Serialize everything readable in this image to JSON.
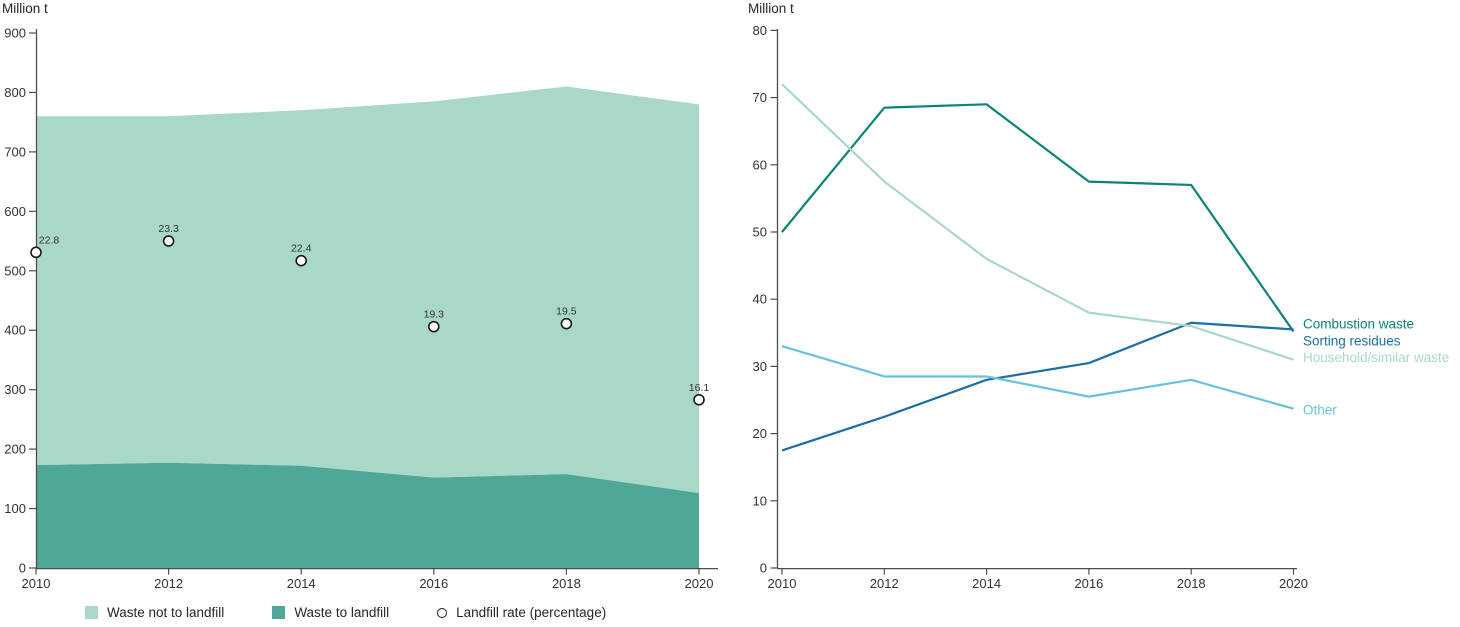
{
  "page": {
    "background_color": "#ffffff"
  },
  "colors": {
    "axis": "#4d4d4d",
    "tick_text": "#333333",
    "text": "#262626",
    "marker_stroke": "#1a1a1a",
    "marker_fill": "#ffffff"
  },
  "chart_data": [
    {
      "type": "area",
      "subtype": "stacked-area-with-rate-markers",
      "ylabel": "Million t",
      "ylim": [
        0,
        900
      ],
      "ytick_step": 100,
      "grid": false,
      "stacked": true,
      "legend_position": "bottom",
      "categories": [
        2010,
        2012,
        2014,
        2016,
        2018,
        2020
      ],
      "totals": [
        760,
        760,
        770,
        785,
        810,
        780
      ],
      "series": [
        {
          "name": "Waste not to landfill",
          "type": "area",
          "color": "#aad8c6",
          "values": [
            587,
            583,
            598,
            633,
            652,
            654
          ]
        },
        {
          "name": "Waste to landfill",
          "type": "area",
          "color": "#4fa897",
          "values": [
            173,
            177,
            172,
            152,
            158,
            126
          ]
        },
        {
          "name": "Landfill rate (percentage)",
          "type": "scatter",
          "marker": "open-circle",
          "marker_fill": "#ffffff",
          "marker_stroke": "#1a1a1a",
          "values": [
            22.8,
            23.3,
            22.4,
            19.3,
            19.5,
            16.1
          ],
          "display_y_primary": [
            531,
            550,
            517,
            406,
            411,
            283
          ]
        }
      ]
    },
    {
      "type": "line",
      "ylabel": "Million t",
      "ylim": [
        0,
        80
      ],
      "ytick_step": 10,
      "grid": false,
      "legend_position": "line-end-labels",
      "categories": [
        2010,
        2012,
        2014,
        2016,
        2018,
        2020
      ],
      "series": [
        {
          "name": "Combustion waste",
          "color": "#0d8376",
          "values": [
            50,
            68.5,
            69,
            57.5,
            57,
            35.2
          ],
          "label_y": 36.3
        },
        {
          "name": "Sorting residues",
          "color": "#1b6fa6",
          "values": [
            17.5,
            22.5,
            28,
            30.5,
            36.5,
            35.5
          ],
          "label_y": 33.8
        },
        {
          "name": "Household/similar waste",
          "color": "#aad8c6",
          "values": [
            72,
            57.5,
            46,
            38,
            36,
            31
          ],
          "label_y": 31.3
        },
        {
          "name": "Other",
          "color": "#66c3dd",
          "values": [
            33,
            28.5,
            28.5,
            25.5,
            28,
            23.7
          ],
          "label_y": 23.5
        }
      ]
    }
  ]
}
